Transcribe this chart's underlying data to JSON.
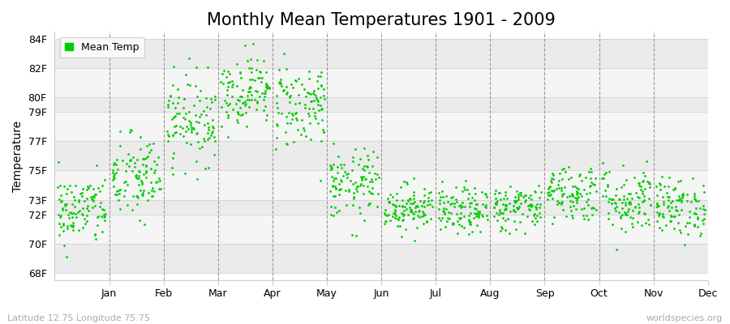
{
  "title": "Monthly Mean Temperatures 1901 - 2009",
  "ylabel": "Temperature",
  "xlabel_labels": [
    "Jan",
    "Feb",
    "Mar",
    "Apr",
    "May",
    "Jun",
    "Jul",
    "Aug",
    "Sep",
    "Oct",
    "Nov",
    "Dec"
  ],
  "yticks": [
    68,
    70,
    72,
    73,
    75,
    77,
    79,
    80,
    82,
    84
  ],
  "ytick_labels": [
    "68F",
    "70F",
    "72F",
    "73F",
    "75F",
    "77F",
    "79F",
    "80F",
    "82F",
    "84F"
  ],
  "ylim": [
    67.5,
    84.5
  ],
  "dot_color": "#00cc00",
  "background_color": "#ffffff",
  "band_color_dark": "#ebebeb",
  "band_color_light": "#f5f5f5",
  "dashed_vline_color": "#999999",
  "legend_label": "Mean Temp",
  "footer_left": "Latitude 12.75 Longitude 75.75",
  "footer_right": "worldspecies.org",
  "title_fontsize": 15,
  "axis_fontsize": 10,
  "tick_fontsize": 9,
  "footer_fontsize": 8,
  "years": 109,
  "seed": 42,
  "monthly_means": [
    72.3,
    74.5,
    78.5,
    80.5,
    79.5,
    74.0,
    72.5,
    72.2,
    72.5,
    73.5,
    73.0,
    72.5
  ],
  "monthly_stds": [
    1.2,
    1.5,
    1.5,
    1.2,
    1.5,
    1.2,
    0.8,
    0.8,
    0.8,
    1.0,
    1.2,
    1.0
  ]
}
